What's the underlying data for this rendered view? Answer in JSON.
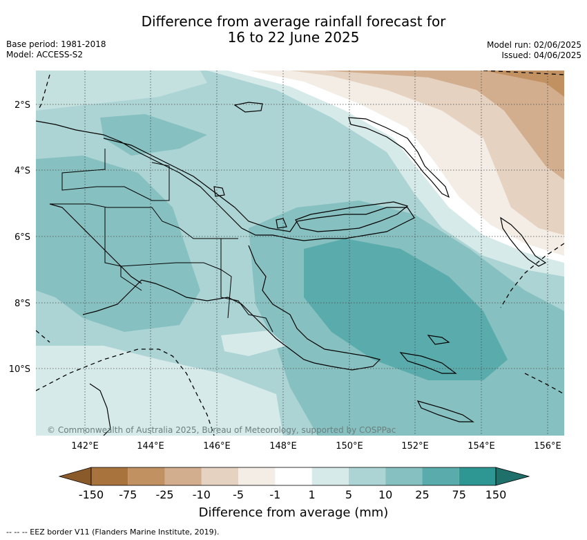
{
  "title_line1": "Difference from average rainfall forecast for",
  "title_line2": "16 to 22 June 2025",
  "base_period": "Base period: 1981-2018",
  "model": "Model: ACCESS-S2",
  "model_run": "Model run: 02/06/2025",
  "issued": "Issued: 04/06/2025",
  "copyright": "© Commonwealth of Australia 2025, Bureau of Meteorology, supported by COSPPac",
  "footnote": "-- -- -- EEZ border V11 (Flanders Marine Institute, 2019).",
  "lat_labels": [
    "2°S",
    "4°S",
    "6°S",
    "8°S",
    "10°S"
  ],
  "lon_labels": [
    "142°E",
    "144°E",
    "146°E",
    "148°E",
    "150°E",
    "152°E",
    "154°E",
    "156°E"
  ],
  "colorbar": {
    "title": "Difference from average (mm)",
    "labels": [
      "-150",
      "-75",
      "-25",
      "-10",
      "-5",
      "-1",
      "1",
      "5",
      "10",
      "25",
      "75",
      "150"
    ],
    "colors": [
      "#8a5a2b",
      "#a8733d",
      "#c29161",
      "#d2ae8e",
      "#e6d2c0",
      "#f3ede6",
      "#ffffff",
      "#d6eae9",
      "#acd4d4",
      "#86c0c0",
      "#5aacac",
      "#2e9793",
      "#1f6f6b"
    ]
  }
}
